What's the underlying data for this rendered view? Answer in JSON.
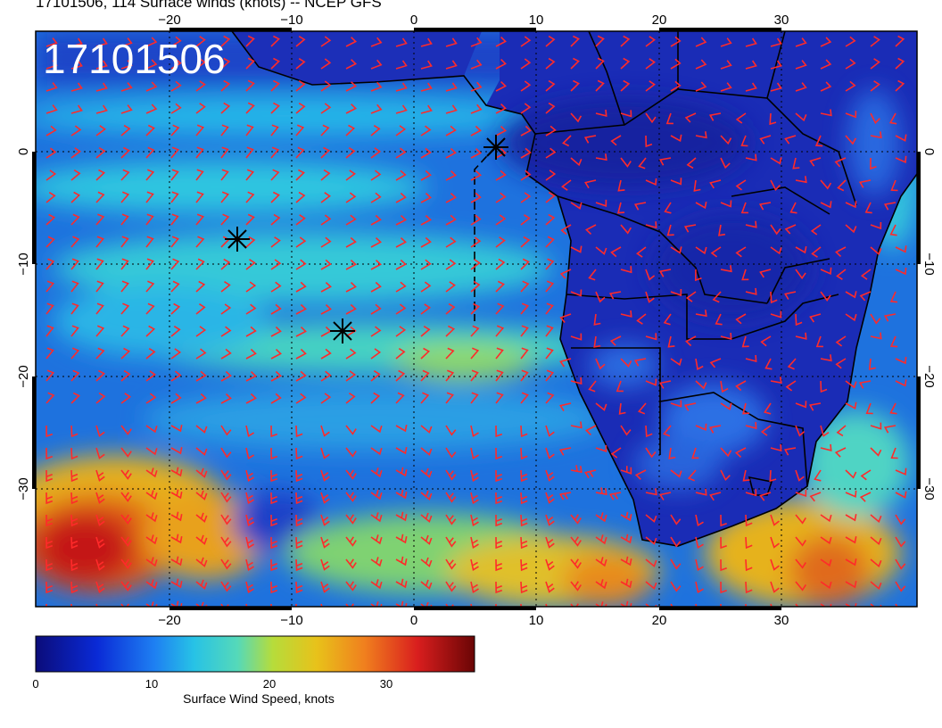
{
  "title": "17101506, 114 Surface winds (knots) -- NCEP GFS",
  "stamp": "17101506",
  "axes": {
    "lon_ticks": [
      "−20",
      "−10",
      "0",
      "10",
      "20",
      "30"
    ],
    "lat_ticks": [
      "0",
      "−10",
      "−20",
      "−30"
    ]
  },
  "colorbar": {
    "label": "Surface Wind Speed, knots",
    "ticks": [
      "0",
      "10",
      "20",
      "30"
    ],
    "colors": [
      "#0b0c7a",
      "#0a2ad6",
      "#1e7ff2",
      "#27c2e6",
      "#55d9b9",
      "#b6dc3b",
      "#e8c21a",
      "#f07f1e",
      "#d91e1e",
      "#6a0505"
    ]
  },
  "markers": [
    {
      "name": "star-marker-1"
    },
    {
      "name": "star-marker-2"
    },
    {
      "name": "star-marker-3"
    }
  ],
  "colors": {
    "barb": "#ff2a2a",
    "ocean_calm": "#1e6fdc",
    "land_low": "#1c2fb8",
    "high_wind": "#d93a1a"
  }
}
